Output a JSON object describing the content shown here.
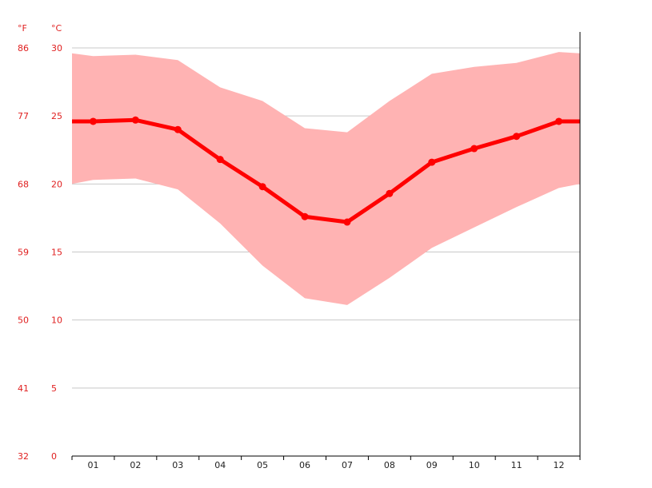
{
  "chart_data": {
    "type": "line",
    "title": "",
    "xlabel": "",
    "ylabel": "",
    "unit_left": "°F",
    "unit_right": "°C",
    "categories": [
      "01",
      "02",
      "03",
      "04",
      "05",
      "06",
      "07",
      "08",
      "09",
      "10",
      "11",
      "12"
    ],
    "series": [
      {
        "values": [
          24.6,
          24.7,
          24.0,
          21.8,
          19.8,
          17.6,
          17.2,
          19.3,
          21.6,
          22.6,
          23.5,
          24.6
        ]
      }
    ],
    "range_high": [
      29.4,
      29.5,
      29.1,
      27.1,
      26.1,
      24.1,
      23.8,
      26.1,
      28.1,
      28.6,
      28.9,
      29.7
    ],
    "range_low": [
      20.3,
      20.4,
      19.6,
      17.1,
      14.0,
      11.6,
      11.1,
      13.1,
      15.3,
      16.8,
      18.3,
      19.7
    ],
    "range_edge_left": {
      "high": 29.6,
      "low": 20.0
    },
    "range_edge_right": {
      "high": 29.6,
      "low": 20.0
    },
    "line_edge_left": 24.6,
    "line_edge_right": 24.6,
    "y_ticks_c": [
      "0",
      "5",
      "10",
      "15",
      "20",
      "25",
      "30"
    ],
    "y_ticks_f": [
      "32",
      "41",
      "50",
      "59",
      "68",
      "77",
      "86"
    ],
    "ylim": [
      0,
      30
    ],
    "grid": true,
    "colors": {
      "line": "#ff0000",
      "band": "#ffb3b3",
      "axis_text": "#e02020"
    }
  }
}
